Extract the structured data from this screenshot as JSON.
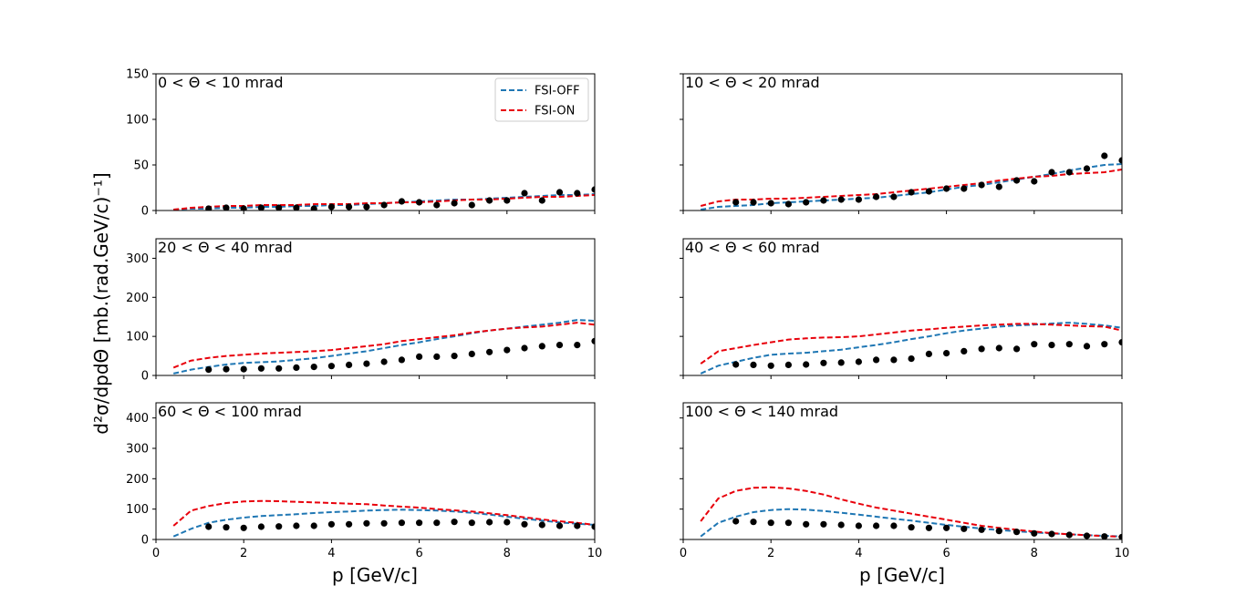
{
  "figure": {
    "xlabel": "p [GeV/c]",
    "ylabel": "d²σ/dpdΘ [mb.(rad.GeV/c)⁻¹]"
  },
  "legend": [
    {
      "label": "FSI-OFF",
      "color": "#1f77b4"
    },
    {
      "label": "FSI-ON",
      "color": "#e8000b"
    }
  ],
  "colors": {
    "fsi_off": "#1f77b4",
    "fsi_on": "#e8000b",
    "data": "#000000"
  },
  "chart_data": [
    {
      "type": "line",
      "title": "0 < Θ < 10 mrad",
      "xlim": [
        0,
        10
      ],
      "ylim": [
        0,
        150
      ],
      "yticks": [
        0,
        50,
        100,
        150
      ],
      "xticks": [
        0,
        2,
        4,
        6,
        8,
        10
      ],
      "x": [
        0.4,
        0.8,
        1.2,
        1.6,
        2.0,
        2.4,
        2.8,
        3.2,
        3.6,
        4.0,
        4.4,
        4.8,
        5.2,
        5.6,
        6.0,
        6.4,
        6.8,
        7.2,
        7.6,
        8.0,
        8.4,
        8.8,
        9.2,
        9.6,
        10.0
      ],
      "series": [
        {
          "name": "FSI-OFF",
          "values": [
            1,
            2,
            2,
            3,
            3,
            4,
            4,
            5,
            5,
            6,
            6,
            7,
            8,
            9,
            10,
            11,
            12,
            12,
            13,
            14,
            15,
            16,
            17,
            17,
            18
          ]
        },
        {
          "name": "FSI-ON",
          "values": [
            1,
            3,
            4,
            5,
            5,
            6,
            6,
            6,
            7,
            7,
            7,
            8,
            8,
            9,
            9,
            10,
            11,
            12,
            12,
            13,
            14,
            15,
            15,
            16,
            17
          ]
        },
        {
          "name": "data",
          "points": [
            [
              1.2,
              2
            ],
            [
              1.6,
              3
            ],
            [
              2.0,
              2
            ],
            [
              2.4,
              3
            ],
            [
              2.8,
              3
            ],
            [
              3.2,
              3
            ],
            [
              3.6,
              2
            ],
            [
              4.0,
              4
            ],
            [
              4.4,
              4
            ],
            [
              4.8,
              4
            ],
            [
              5.2,
              6
            ],
            [
              5.6,
              10
            ],
            [
              6.0,
              9
            ],
            [
              6.4,
              6
            ],
            [
              6.8,
              8
            ],
            [
              7.2,
              6
            ],
            [
              7.6,
              11
            ],
            [
              8.0,
              11
            ],
            [
              8.4,
              19
            ],
            [
              8.8,
              11
            ],
            [
              9.2,
              20
            ],
            [
              9.6,
              19
            ],
            [
              10.0,
              23
            ]
          ]
        }
      ]
    },
    {
      "type": "line",
      "title": "10 < Θ < 20 mrad",
      "xlim": [
        0,
        10
      ],
      "ylim": [
        0,
        150
      ],
      "yticks": [
        0,
        50,
        100,
        150
      ],
      "xticks": [
        0,
        2,
        4,
        6,
        8,
        10
      ],
      "x": [
        0.4,
        0.8,
        1.2,
        1.6,
        2.0,
        2.4,
        2.8,
        3.2,
        3.6,
        4.0,
        4.4,
        4.8,
        5.2,
        5.6,
        6.0,
        6.4,
        6.8,
        7.2,
        7.6,
        8.0,
        8.4,
        8.8,
        9.2,
        9.6,
        10.0
      ],
      "series": [
        {
          "name": "FSI-OFF",
          "values": [
            1,
            4,
            5,
            6,
            8,
            9,
            10,
            11,
            12,
            13,
            14,
            16,
            18,
            20,
            23,
            26,
            28,
            31,
            34,
            37,
            40,
            44,
            47,
            50,
            51
          ]
        },
        {
          "name": "FSI-ON",
          "values": [
            5,
            10,
            12,
            12,
            13,
            13,
            14,
            15,
            16,
            17,
            18,
            20,
            22,
            24,
            26,
            28,
            30,
            33,
            35,
            37,
            38,
            40,
            41,
            42,
            45
          ]
        },
        {
          "name": "data",
          "points": [
            [
              1.2,
              9
            ],
            [
              1.6,
              9
            ],
            [
              2.0,
              8
            ],
            [
              2.4,
              7
            ],
            [
              2.8,
              9
            ],
            [
              3.2,
              11
            ],
            [
              3.6,
              12
            ],
            [
              4.0,
              12
            ],
            [
              4.4,
              15
            ],
            [
              4.8,
              15
            ],
            [
              5.2,
              20
            ],
            [
              5.6,
              21
            ],
            [
              6.0,
              24
            ],
            [
              6.4,
              24
            ],
            [
              6.8,
              28
            ],
            [
              7.2,
              26
            ],
            [
              7.6,
              33
            ],
            [
              8.0,
              32
            ],
            [
              8.4,
              42
            ],
            [
              8.8,
              42
            ],
            [
              9.2,
              46
            ],
            [
              9.6,
              60
            ],
            [
              10.0,
              55
            ]
          ]
        }
      ]
    },
    {
      "type": "line",
      "title": "20 < Θ < 40 mrad",
      "xlim": [
        0,
        10
      ],
      "ylim": [
        0,
        350
      ],
      "yticks": [
        0,
        100,
        200,
        300
      ],
      "xticks": [
        0,
        2,
        4,
        6,
        8,
        10
      ],
      "x": [
        0.4,
        0.8,
        1.2,
        1.6,
        2.0,
        2.4,
        2.8,
        3.2,
        3.6,
        4.0,
        4.4,
        4.8,
        5.2,
        5.6,
        6.0,
        6.4,
        6.8,
        7.2,
        7.6,
        8.0,
        8.4,
        8.8,
        9.2,
        9.6,
        10.0
      ],
      "series": [
        {
          "name": "FSI-OFF",
          "values": [
            5,
            15,
            22,
            28,
            32,
            34,
            36,
            40,
            44,
            50,
            56,
            62,
            70,
            78,
            85,
            93,
            100,
            108,
            115,
            120,
            125,
            130,
            135,
            142,
            140
          ]
        },
        {
          "name": "FSI-ON",
          "values": [
            20,
            38,
            45,
            50,
            53,
            56,
            58,
            60,
            62,
            65,
            70,
            75,
            80,
            88,
            93,
            98,
            103,
            110,
            115,
            120,
            123,
            125,
            130,
            135,
            130
          ]
        },
        {
          "name": "data",
          "points": [
            [
              1.2,
              15
            ],
            [
              1.6,
              16
            ],
            [
              2.0,
              16
            ],
            [
              2.4,
              18
            ],
            [
              2.8,
              18
            ],
            [
              3.2,
              20
            ],
            [
              3.6,
              22
            ],
            [
              4.0,
              24
            ],
            [
              4.4,
              27
            ],
            [
              4.8,
              30
            ],
            [
              5.2,
              35
            ],
            [
              5.6,
              40
            ],
            [
              6.0,
              48
            ],
            [
              6.4,
              48
            ],
            [
              6.8,
              50
            ],
            [
              7.2,
              55
            ],
            [
              7.6,
              60
            ],
            [
              8.0,
              65
            ],
            [
              8.4,
              70
            ],
            [
              8.8,
              75
            ],
            [
              9.2,
              78
            ],
            [
              9.6,
              78
            ],
            [
              10.0,
              88
            ]
          ]
        }
      ]
    },
    {
      "type": "line",
      "title": "40 < Θ < 60 mrad",
      "xlim": [
        0,
        10
      ],
      "ylim": [
        0,
        350
      ],
      "yticks": [
        0,
        100,
        200,
        300
      ],
      "xticks": [
        0,
        2,
        4,
        6,
        8,
        10
      ],
      "x": [
        0.4,
        0.8,
        1.2,
        1.6,
        2.0,
        2.4,
        2.8,
        3.2,
        3.6,
        4.0,
        4.4,
        4.8,
        5.2,
        5.6,
        6.0,
        6.4,
        6.8,
        7.2,
        7.6,
        8.0,
        8.4,
        8.8,
        9.2,
        9.6,
        10.0
      ],
      "series": [
        {
          "name": "FSI-OFF",
          "values": [
            5,
            25,
            35,
            45,
            53,
            56,
            58,
            62,
            66,
            72,
            78,
            85,
            93,
            100,
            108,
            115,
            120,
            125,
            128,
            130,
            133,
            135,
            132,
            128,
            122
          ]
        },
        {
          "name": "FSI-ON",
          "values": [
            30,
            62,
            70,
            78,
            85,
            92,
            95,
            97,
            98,
            100,
            105,
            110,
            115,
            118,
            122,
            125,
            128,
            130,
            132,
            132,
            130,
            128,
            126,
            125,
            115
          ]
        },
        {
          "name": "data",
          "points": [
            [
              1.2,
              28
            ],
            [
              1.6,
              27
            ],
            [
              2.0,
              25
            ],
            [
              2.4,
              27
            ],
            [
              2.8,
              28
            ],
            [
              3.2,
              32
            ],
            [
              3.6,
              33
            ],
            [
              4.0,
              35
            ],
            [
              4.4,
              40
            ],
            [
              4.8,
              40
            ],
            [
              5.2,
              43
            ],
            [
              5.6,
              55
            ],
            [
              6.0,
              57
            ],
            [
              6.4,
              62
            ],
            [
              6.8,
              68
            ],
            [
              7.2,
              70
            ],
            [
              7.6,
              68
            ],
            [
              8.0,
              80
            ],
            [
              8.4,
              78
            ],
            [
              8.8,
              80
            ],
            [
              9.2,
              75
            ],
            [
              9.6,
              80
            ],
            [
              10.0,
              85
            ]
          ]
        }
      ]
    },
    {
      "type": "line",
      "title": "60 < Θ < 100 mrad",
      "xlim": [
        0,
        10
      ],
      "ylim": [
        0,
        450
      ],
      "yticks": [
        0,
        100,
        200,
        300,
        400
      ],
      "xticks": [
        0,
        2,
        4,
        6,
        8,
        10
      ],
      "x": [
        0.4,
        0.8,
        1.2,
        1.6,
        2.0,
        2.4,
        2.8,
        3.2,
        3.6,
        4.0,
        4.4,
        4.8,
        5.2,
        5.6,
        6.0,
        6.4,
        6.8,
        7.2,
        7.6,
        8.0,
        8.4,
        8.8,
        9.2,
        9.6,
        10.0
      ],
      "series": [
        {
          "name": "FSI-OFF",
          "values": [
            10,
            35,
            55,
            65,
            72,
            77,
            80,
            83,
            87,
            90,
            92,
            95,
            97,
            98,
            97,
            95,
            92,
            88,
            82,
            75,
            68,
            62,
            56,
            52,
            48
          ]
        },
        {
          "name": "FSI-ON",
          "values": [
            45,
            95,
            110,
            120,
            125,
            127,
            126,
            124,
            122,
            120,
            118,
            116,
            112,
            108,
            105,
            100,
            96,
            92,
            86,
            80,
            73,
            66,
            60,
            55,
            48
          ]
        },
        {
          "name": "data",
          "points": [
            [
              1.2,
              42
            ],
            [
              1.6,
              40
            ],
            [
              2.0,
              38
            ],
            [
              2.4,
              42
            ],
            [
              2.8,
              43
            ],
            [
              3.2,
              45
            ],
            [
              3.6,
              45
            ],
            [
              4.0,
              50
            ],
            [
              4.4,
              50
            ],
            [
              4.8,
              53
            ],
            [
              5.2,
              53
            ],
            [
              5.6,
              55
            ],
            [
              6.0,
              55
            ],
            [
              6.4,
              55
            ],
            [
              6.8,
              58
            ],
            [
              7.2,
              55
            ],
            [
              7.6,
              57
            ],
            [
              8.0,
              57
            ],
            [
              8.4,
              50
            ],
            [
              8.8,
              48
            ],
            [
              9.2,
              45
            ],
            [
              9.6,
              45
            ],
            [
              10.0,
              42
            ]
          ]
        }
      ]
    },
    {
      "type": "line",
      "title": "100 < Θ < 140 mrad",
      "xlim": [
        0,
        10
      ],
      "ylim": [
        0,
        450
      ],
      "yticks": [
        0,
        100,
        200,
        300,
        400
      ],
      "xticks": [
        0,
        2,
        4,
        6,
        8,
        10
      ],
      "x": [
        0.4,
        0.8,
        1.2,
        1.6,
        2.0,
        2.4,
        2.8,
        3.2,
        3.6,
        4.0,
        4.4,
        4.8,
        5.2,
        5.6,
        6.0,
        6.4,
        6.8,
        7.2,
        7.6,
        8.0,
        8.4,
        8.8,
        9.2,
        9.6,
        10.0
      ],
      "series": [
        {
          "name": "FSI-OFF",
          "values": [
            10,
            55,
            75,
            90,
            97,
            100,
            98,
            94,
            88,
            82,
            75,
            68,
            62,
            55,
            48,
            42,
            36,
            31,
            27,
            23,
            20,
            17,
            14,
            12,
            10
          ]
        },
        {
          "name": "FSI-ON",
          "values": [
            60,
            135,
            160,
            170,
            172,
            168,
            160,
            148,
            132,
            118,
            105,
            95,
            85,
            75,
            65,
            55,
            45,
            38,
            32,
            26,
            21,
            17,
            14,
            11,
            9
          ]
        },
        {
          "name": "data",
          "points": [
            [
              1.2,
              60
            ],
            [
              1.6,
              58
            ],
            [
              2.0,
              55
            ],
            [
              2.4,
              55
            ],
            [
              2.8,
              50
            ],
            [
              3.2,
              50
            ],
            [
              3.6,
              48
            ],
            [
              4.0,
              45
            ],
            [
              4.4,
              45
            ],
            [
              4.8,
              45
            ],
            [
              5.2,
              40
            ],
            [
              5.6,
              38
            ],
            [
              6.0,
              38
            ],
            [
              6.4,
              35
            ],
            [
              6.8,
              32
            ],
            [
              7.2,
              28
            ],
            [
              7.6,
              25
            ],
            [
              8.0,
              20
            ],
            [
              8.4,
              18
            ],
            [
              8.8,
              15
            ],
            [
              9.2,
              12
            ],
            [
              9.6,
              10
            ],
            [
              10.0,
              8
            ]
          ]
        }
      ]
    }
  ]
}
